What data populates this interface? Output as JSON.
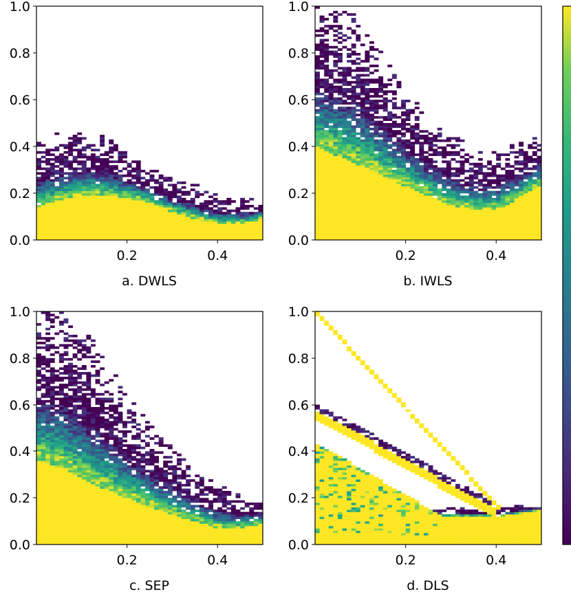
{
  "chart_data": [
    {
      "type": "heatmap",
      "title": "",
      "caption": "a. DWLS",
      "xlim": [
        0.0,
        0.5
      ],
      "ylim": [
        0.0,
        1.0
      ],
      "xticks": [
        {
          "value": 0.2,
          "label": "0.2"
        },
        {
          "value": 0.4,
          "label": "0.4"
        }
      ],
      "yticks": [
        {
          "value": 0.0,
          "label": "0.0"
        },
        {
          "value": 0.2,
          "label": "0.2"
        },
        {
          "value": 0.4,
          "label": "0.4"
        },
        {
          "value": 0.6,
          "label": "0.6"
        },
        {
          "value": 0.8,
          "label": "0.8"
        },
        {
          "value": 1.0,
          "label": "1.0"
        }
      ],
      "profile": {
        "x": [
          0.0,
          0.05,
          0.1,
          0.15,
          0.2,
          0.25,
          0.3,
          0.35,
          0.4,
          0.45,
          0.5
        ],
        "yellow_upper": [
          0.14,
          0.17,
          0.19,
          0.19,
          0.18,
          0.16,
          0.12,
          0.09,
          0.07,
          0.07,
          0.09
        ],
        "spread_upper": [
          0.42,
          0.46,
          0.48,
          0.45,
          0.38,
          0.32,
          0.27,
          0.24,
          0.2,
          0.18,
          0.17
        ]
      },
      "bands": []
    },
    {
      "type": "heatmap",
      "title": "",
      "caption": "b. IWLS",
      "xlim": [
        0.0,
        0.5
      ],
      "ylim": [
        0.0,
        1.0
      ],
      "xticks": [
        {
          "value": 0.2,
          "label": "0.2"
        },
        {
          "value": 0.4,
          "label": "0.4"
        }
      ],
      "yticks": [
        {
          "value": 0.0,
          "label": "0.0"
        },
        {
          "value": 0.2,
          "label": "0.2"
        },
        {
          "value": 0.4,
          "label": "0.4"
        },
        {
          "value": 0.6,
          "label": "0.6"
        },
        {
          "value": 0.8,
          "label": "0.8"
        },
        {
          "value": 1.0,
          "label": "1.0"
        }
      ],
      "profile": {
        "x": [
          0.0,
          0.05,
          0.1,
          0.15,
          0.2,
          0.25,
          0.3,
          0.35,
          0.4,
          0.45,
          0.5
        ],
        "yellow_upper": [
          0.4,
          0.36,
          0.32,
          0.27,
          0.23,
          0.19,
          0.15,
          0.13,
          0.13,
          0.18,
          0.24
        ],
        "spread_upper": [
          1.0,
          1.0,
          0.95,
          0.8,
          0.65,
          0.52,
          0.45,
          0.4,
          0.38,
          0.42,
          0.45
        ]
      },
      "bands": []
    },
    {
      "type": "heatmap",
      "title": "",
      "caption": "c. SEP",
      "xlim": [
        0.0,
        0.5
      ],
      "ylim": [
        0.0,
        1.0
      ],
      "xticks": [
        {
          "value": 0.2,
          "label": "0.2"
        },
        {
          "value": 0.4,
          "label": "0.4"
        }
      ],
      "yticks": [
        {
          "value": 0.0,
          "label": "0.0"
        },
        {
          "value": 0.2,
          "label": "0.2"
        },
        {
          "value": 0.4,
          "label": "0.4"
        },
        {
          "value": 0.6,
          "label": "0.6"
        },
        {
          "value": 0.8,
          "label": "0.8"
        },
        {
          "value": 1.0,
          "label": "1.0"
        }
      ],
      "profile": {
        "x": [
          0.0,
          0.05,
          0.1,
          0.15,
          0.2,
          0.25,
          0.3,
          0.35,
          0.4,
          0.45,
          0.5
        ],
        "yellow_upper": [
          0.36,
          0.33,
          0.28,
          0.24,
          0.2,
          0.16,
          0.13,
          0.1,
          0.07,
          0.07,
          0.09
        ],
        "spread_upper": [
          1.0,
          1.0,
          0.95,
          0.8,
          0.65,
          0.52,
          0.42,
          0.33,
          0.26,
          0.22,
          0.2
        ]
      },
      "bands": []
    },
    {
      "type": "heatmap",
      "title": "",
      "caption": "d. DLS",
      "xlim": [
        0.0,
        0.5
      ],
      "ylim": [
        0.0,
        1.0
      ],
      "xticks": [
        {
          "value": 0.2,
          "label": "0.2"
        },
        {
          "value": 0.4,
          "label": "0.4"
        }
      ],
      "yticks": [
        {
          "value": 0.0,
          "label": "0.0"
        },
        {
          "value": 0.2,
          "label": "0.2"
        },
        {
          "value": 0.4,
          "label": "0.4"
        },
        {
          "value": 0.6,
          "label": "0.6"
        },
        {
          "value": 0.8,
          "label": "0.8"
        },
        {
          "value": 1.0,
          "label": "1.0"
        }
      ],
      "profile": {
        "x": [
          0.0,
          0.05,
          0.1,
          0.15,
          0.2,
          0.25,
          0.3,
          0.35,
          0.4,
          0.45,
          0.5
        ],
        "yellow_upper": [
          0.12,
          0.12,
          0.12,
          0.12,
          0.12,
          0.12,
          0.12,
          0.12,
          0.12,
          0.13,
          0.15
        ],
        "spread_upper": [
          0.16,
          0.16,
          0.16,
          0.16,
          0.16,
          0.16,
          0.16,
          0.16,
          0.16,
          0.17,
          0.17
        ]
      },
      "bands": [
        {
          "x0": 0.0,
          "y0": 0.56,
          "x1": 0.4,
          "y1": 0.13,
          "thickness": 0.04
        },
        {
          "x0": 0.0,
          "y0": 1.0,
          "x1": 0.41,
          "y1": 0.15,
          "thickness": 0.02
        },
        {
          "x0": 0.0,
          "y0": 0.44,
          "x1": 0.3,
          "y1": 0.1,
          "thickness": 0.34
        }
      ]
    }
  ],
  "colorbar": {
    "colormap": "viridis",
    "ticks": []
  },
  "colors": {
    "viridis_low": "#440154",
    "viridis_mid": "#21918c",
    "viridis_high": "#fde725",
    "axis": "#000000",
    "background": "#ffffff"
  }
}
